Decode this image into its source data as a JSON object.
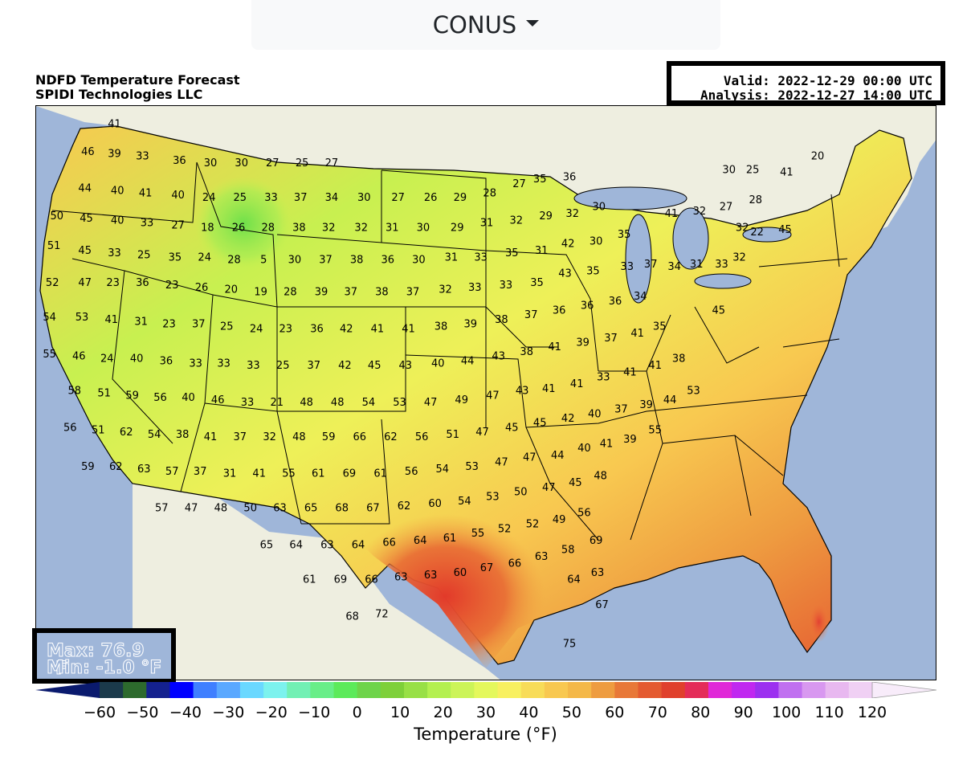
{
  "region_selector": {
    "label": "CONUS",
    "icon": "caret-down-icon"
  },
  "header": {
    "title_line1": "NDFD Temperature Forecast",
    "title_line2": "SPIDI Technologies LLC",
    "valid": "Valid: 2022-12-29 00:00 UTC",
    "analysis": "Analysis: 2022-12-27 14:00 UTC"
  },
  "stats": {
    "max": "Max: 76.9 °F",
    "min": "Min: -1.0 °F"
  },
  "colorbar": {
    "label": "Temperature (°F)",
    "ticks": [
      "−60",
      "−50",
      "−40",
      "−30",
      "−20",
      "−10",
      "0",
      "10",
      "20",
      "30",
      "40",
      "50",
      "60",
      "70",
      "80",
      "90",
      "100",
      "110",
      "120"
    ],
    "colors": [
      "#0a1a6e",
      "#1b3a4b",
      "#2d6a2d",
      "#14218f",
      "#0000ff",
      "#3f7fff",
      "#5aa8ff",
      "#6ad8ff",
      "#7cf2ee",
      "#72f0b4",
      "#68ee88",
      "#5cea5a",
      "#6ed44a",
      "#7ed03a",
      "#98e046",
      "#b4f050",
      "#ccf458",
      "#e4f85c",
      "#f8f060",
      "#f8dc58",
      "#f8c850",
      "#f4b848",
      "#ee9c40",
      "#e87838",
      "#e45a30",
      "#e0402c",
      "#e42c58",
      "#e028d8",
      "#c028f0",
      "#9c30f0",
      "#c070f0",
      "#d898f0",
      "#e8b8f0",
      "#f0d0f4",
      "#f8ecfa"
    ],
    "range": [
      -60,
      120
    ],
    "step": 5
  },
  "map_colors": {
    "ocean": "#9fb6d9",
    "land_foreign": "#eeeee0",
    "lakes": "#9fb6d9",
    "boundary": "#000000"
  },
  "map_labels": [
    {
      "t": "41",
      "lon": -122.2,
      "lat": 48.7
    },
    {
      "t": "46",
      "lon": -124.0,
      "lat": 47.5
    },
    {
      "t": "39",
      "lon": -122.2,
      "lat": 47.4
    },
    {
      "t": "33",
      "lon": -120.3,
      "lat": 47.3
    },
    {
      "t": "36",
      "lon": -117.8,
      "lat": 47.1
    },
    {
      "t": "30",
      "lon": -115.7,
      "lat": 47.0
    },
    {
      "t": "30",
      "lon": -113.6,
      "lat": 47.0
    },
    {
      "t": "27",
      "lon": -111.5,
      "lat": 47.0
    },
    {
      "t": "25",
      "lon": -109.5,
      "lat": 47.0
    },
    {
      "t": "27",
      "lon": -107.5,
      "lat": 47.0
    },
    {
      "t": "44",
      "lon": -124.2,
      "lat": 45.9
    },
    {
      "t": "40",
      "lon": -122.0,
      "lat": 45.8
    },
    {
      "t": "41",
      "lon": -120.1,
      "lat": 45.7
    },
    {
      "t": "40",
      "lon": -117.9,
      "lat": 45.6
    },
    {
      "t": "24",
      "lon": -115.8,
      "lat": 45.5
    },
    {
      "t": "25",
      "lon": -113.7,
      "lat": 45.5
    },
    {
      "t": "33",
      "lon": -111.6,
      "lat": 45.5
    },
    {
      "t": "37",
      "lon": -109.6,
      "lat": 45.5
    },
    {
      "t": "34",
      "lon": -107.5,
      "lat": 45.5
    },
    {
      "t": "30",
      "lon": -105.3,
      "lat": 45.5
    },
    {
      "t": "27",
      "lon": -103.0,
      "lat": 45.5
    },
    {
      "t": "26",
      "lon": -100.8,
      "lat": 45.5
    },
    {
      "t": "29",
      "lon": -98.8,
      "lat": 45.5
    },
    {
      "t": "28",
      "lon": -96.8,
      "lat": 45.7
    },
    {
      "t": "27",
      "lon": -94.8,
      "lat": 46.1
    },
    {
      "t": "35",
      "lon": -93.4,
      "lat": 46.3
    },
    {
      "t": "36",
      "lon": -91.4,
      "lat": 46.4
    },
    {
      "t": "50",
      "lon": -126.1,
      "lat": 44.7
    },
    {
      "t": "45",
      "lon": -124.1,
      "lat": 44.6
    },
    {
      "t": "40",
      "lon": -122.0,
      "lat": 44.5
    },
    {
      "t": "33",
      "lon": -120.0,
      "lat": 44.4
    },
    {
      "t": "27",
      "lon": -117.9,
      "lat": 44.3
    },
    {
      "t": "18",
      "lon": -115.9,
      "lat": 44.2
    },
    {
      "t": "26",
      "lon": -113.8,
      "lat": 44.2
    },
    {
      "t": "28",
      "lon": -111.8,
      "lat": 44.2
    },
    {
      "t": "38",
      "lon": -109.7,
      "lat": 44.2
    },
    {
      "t": "32",
      "lon": -107.7,
      "lat": 44.2
    },
    {
      "t": "32",
      "lon": -105.5,
      "lat": 44.2
    },
    {
      "t": "31",
      "lon": -103.4,
      "lat": 44.2
    },
    {
      "t": "30",
      "lon": -101.3,
      "lat": 44.2
    },
    {
      "t": "29",
      "lon": -99.0,
      "lat": 44.2
    },
    {
      "t": "31",
      "lon": -97.0,
      "lat": 44.4
    },
    {
      "t": "32",
      "lon": -95.0,
      "lat": 44.5
    },
    {
      "t": "29",
      "lon": -93.0,
      "lat": 44.7
    },
    {
      "t": "32",
      "lon": -91.2,
      "lat": 44.8
    },
    {
      "t": "30",
      "lon": -89.4,
      "lat": 45.1
    },
    {
      "t": "51",
      "lon": -126.3,
      "lat": 43.4
    },
    {
      "t": "45",
      "lon": -124.2,
      "lat": 43.2
    },
    {
      "t": "33",
      "lon": -122.2,
      "lat": 43.1
    },
    {
      "t": "25",
      "lon": -120.2,
      "lat": 43.0
    },
    {
      "t": "35",
      "lon": -118.1,
      "lat": 42.9
    },
    {
      "t": "24",
      "lon": -116.1,
      "lat": 42.9
    },
    {
      "t": "28",
      "lon": -114.1,
      "lat": 42.8
    },
    {
      "t": "5",
      "lon": -112.1,
      "lat": 42.8
    },
    {
      "t": "30",
      "lon": -110.0,
      "lat": 42.8
    },
    {
      "t": "37",
      "lon": -107.9,
      "lat": 42.8
    },
    {
      "t": "38",
      "lon": -105.8,
      "lat": 42.8
    },
    {
      "t": "36",
      "lon": -103.7,
      "lat": 42.8
    },
    {
      "t": "30",
      "lon": -101.6,
      "lat": 42.8
    },
    {
      "t": "31",
      "lon": -99.4,
      "lat": 42.9
    },
    {
      "t": "33",
      "lon": -97.4,
      "lat": 42.9
    },
    {
      "t": "35",
      "lon": -95.3,
      "lat": 43.1
    },
    {
      "t": "31",
      "lon": -93.3,
      "lat": 43.2
    },
    {
      "t": "42",
      "lon": -91.5,
      "lat": 43.5
    },
    {
      "t": "30",
      "lon": -89.6,
      "lat": 43.6
    },
    {
      "t": "35",
      "lon": -87.7,
      "lat": 43.9
    },
    {
      "t": "41",
      "lon": -84.5,
      "lat": 44.8
    },
    {
      "t": "32",
      "lon": -82.6,
      "lat": 44.9
    },
    {
      "t": "27",
      "lon": -80.8,
      "lat": 45.1
    },
    {
      "t": "28",
      "lon": -78.8,
      "lat": 45.4
    },
    {
      "t": "20",
      "lon": -74.6,
      "lat": 47.3
    },
    {
      "t": "30",
      "lon": -80.6,
      "lat": 46.7
    },
    {
      "t": "25",
      "lon": -79.0,
      "lat": 46.7
    },
    {
      "t": "41",
      "lon": -76.7,
      "lat": 46.6
    },
    {
      "t": "32",
      "lon": -79.7,
      "lat": 44.2
    },
    {
      "t": "22",
      "lon": -78.7,
      "lat": 44.0
    },
    {
      "t": "45",
      "lon": -76.8,
      "lat": 44.1
    },
    {
      "t": "52",
      "lon": -126.4,
      "lat": 41.8
    },
    {
      "t": "47",
      "lon": -124.2,
      "lat": 41.8
    },
    {
      "t": "23",
      "lon": -122.3,
      "lat": 41.8
    },
    {
      "t": "36",
      "lon": -120.3,
      "lat": 41.8
    },
    {
      "t": "23",
      "lon": -118.3,
      "lat": 41.7
    },
    {
      "t": "26",
      "lon": -116.3,
      "lat": 41.6
    },
    {
      "t": "20",
      "lon": -114.3,
      "lat": 41.5
    },
    {
      "t": "19",
      "lon": -112.3,
      "lat": 41.4
    },
    {
      "t": "28",
      "lon": -110.3,
      "lat": 41.4
    },
    {
      "t": "39",
      "lon": -108.2,
      "lat": 41.4
    },
    {
      "t": "37",
      "lon": -106.2,
      "lat": 41.4
    },
    {
      "t": "38",
      "lon": -104.1,
      "lat": 41.4
    },
    {
      "t": "37",
      "lon": -102.0,
      "lat": 41.4
    },
    {
      "t": "32",
      "lon": -99.8,
      "lat": 41.5
    },
    {
      "t": "33",
      "lon": -97.8,
      "lat": 41.6
    },
    {
      "t": "33",
      "lon": -95.7,
      "lat": 41.7
    },
    {
      "t": "35",
      "lon": -93.6,
      "lat": 41.8
    },
    {
      "t": "43",
      "lon": -91.7,
      "lat": 42.2
    },
    {
      "t": "35",
      "lon": -89.8,
      "lat": 42.3
    },
    {
      "t": "33",
      "lon": -87.5,
      "lat": 42.5
    },
    {
      "t": "37",
      "lon": -85.9,
      "lat": 42.6
    },
    {
      "t": "34",
      "lon": -84.3,
      "lat": 42.5
    },
    {
      "t": "31",
      "lon": -82.8,
      "lat": 42.6
    },
    {
      "t": "33",
      "lon": -81.1,
      "lat": 42.6
    },
    {
      "t": "32",
      "lon": -79.9,
      "lat": 42.9
    },
    {
      "t": "54",
      "lon": -126.6,
      "lat": 40.3
    },
    {
      "t": "53",
      "lon": -124.4,
      "lat": 40.3
    },
    {
      "t": "41",
      "lon": -122.4,
      "lat": 40.2
    },
    {
      "t": "31",
      "lon": -120.4,
      "lat": 40.1
    },
    {
      "t": "23",
      "lon": -118.5,
      "lat": 40.0
    },
    {
      "t": "37",
      "lon": -116.5,
      "lat": 40.0
    },
    {
      "t": "25",
      "lon": -114.6,
      "lat": 39.9
    },
    {
      "t": "24",
      "lon": -112.6,
      "lat": 39.8
    },
    {
      "t": "23",
      "lon": -110.6,
      "lat": 39.8
    },
    {
      "t": "36",
      "lon": -108.5,
      "lat": 39.8
    },
    {
      "t": "42",
      "lon": -106.5,
      "lat": 39.8
    },
    {
      "t": "41",
      "lon": -104.4,
      "lat": 39.8
    },
    {
      "t": "41",
      "lon": -102.3,
      "lat": 39.8
    },
    {
      "t": "38",
      "lon": -100.1,
      "lat": 39.9
    },
    {
      "t": "39",
      "lon": -98.1,
      "lat": 40.0
    },
    {
      "t": "38",
      "lon": -96.0,
      "lat": 40.2
    },
    {
      "t": "37",
      "lon": -94.0,
      "lat": 40.4
    },
    {
      "t": "36",
      "lon": -92.1,
      "lat": 40.6
    },
    {
      "t": "36",
      "lon": -90.2,
      "lat": 40.8
    },
    {
      "t": "36",
      "lon": -88.3,
      "lat": 41.0
    },
    {
      "t": "34",
      "lon": -86.6,
      "lat": 41.2
    },
    {
      "t": "45",
      "lon": -81.3,
      "lat": 40.6
    },
    {
      "t": "55",
      "lon": -126.6,
      "lat": 38.7
    },
    {
      "t": "46",
      "lon": -124.6,
      "lat": 38.6
    },
    {
      "t": "24",
      "lon": -122.7,
      "lat": 38.5
    },
    {
      "t": "40",
      "lon": -120.7,
      "lat": 38.5
    },
    {
      "t": "36",
      "lon": -118.7,
      "lat": 38.4
    },
    {
      "t": "33",
      "lon": -116.7,
      "lat": 38.3
    },
    {
      "t": "33",
      "lon": -114.8,
      "lat": 38.3
    },
    {
      "t": "33",
      "lon": -112.8,
      "lat": 38.2
    },
    {
      "t": "25",
      "lon": -110.8,
      "lat": 38.2
    },
    {
      "t": "37",
      "lon": -108.7,
      "lat": 38.2
    },
    {
      "t": "42",
      "lon": -106.6,
      "lat": 38.2
    },
    {
      "t": "45",
      "lon": -104.6,
      "lat": 38.2
    },
    {
      "t": "43",
      "lon": -102.5,
      "lat": 38.2
    },
    {
      "t": "40",
      "lon": -100.3,
      "lat": 38.3
    },
    {
      "t": "44",
      "lon": -98.3,
      "lat": 38.4
    },
    {
      "t": "43",
      "lon": -96.2,
      "lat": 38.6
    },
    {
      "t": "38",
      "lon": -94.3,
      "lat": 38.8
    },
    {
      "t": "41",
      "lon": -92.4,
      "lat": 39.0
    },
    {
      "t": "39",
      "lon": -90.5,
      "lat": 39.2
    },
    {
      "t": "37",
      "lon": -88.6,
      "lat": 39.4
    },
    {
      "t": "41",
      "lon": -86.8,
      "lat": 39.6
    },
    {
      "t": "35",
      "lon": -85.3,
      "lat": 39.9
    },
    {
      "t": "58",
      "lon": -124.9,
      "lat": 37.1
    },
    {
      "t": "51",
      "lon": -122.9,
      "lat": 37.0
    },
    {
      "t": "59",
      "lon": -121.0,
      "lat": 36.9
    },
    {
      "t": "56",
      "lon": -119.1,
      "lat": 36.8
    },
    {
      "t": "40",
      "lon": -117.2,
      "lat": 36.8
    },
    {
      "t": "46",
      "lon": -115.2,
      "lat": 36.7
    },
    {
      "t": "33",
      "lon": -113.2,
      "lat": 36.6
    },
    {
      "t": "21",
      "lon": -111.2,
      "lat": 36.6
    },
    {
      "t": "48",
      "lon": -109.2,
      "lat": 36.6
    },
    {
      "t": "48",
      "lon": -107.1,
      "lat": 36.6
    },
    {
      "t": "54",
      "lon": -105.0,
      "lat": 36.6
    },
    {
      "t": "53",
      "lon": -102.9,
      "lat": 36.6
    },
    {
      "t": "47",
      "lon": -100.8,
      "lat": 36.6
    },
    {
      "t": "49",
      "lon": -98.7,
      "lat": 36.7
    },
    {
      "t": "47",
      "lon": -96.6,
      "lat": 36.9
    },
    {
      "t": "43",
      "lon": -94.6,
      "lat": 37.1
    },
    {
      "t": "41",
      "lon": -92.8,
      "lat": 37.2
    },
    {
      "t": "41",
      "lon": -90.9,
      "lat": 37.4
    },
    {
      "t": "33",
      "lon": -89.1,
      "lat": 37.7
    },
    {
      "t": "41",
      "lon": -87.3,
      "lat": 37.9
    },
    {
      "t": "41",
      "lon": -85.6,
      "lat": 38.2
    },
    {
      "t": "38",
      "lon": -84.0,
      "lat": 38.5
    },
    {
      "t": "56",
      "lon": -125.2,
      "lat": 35.5
    },
    {
      "t": "51",
      "lon": -123.3,
      "lat": 35.4
    },
    {
      "t": "62",
      "lon": -121.4,
      "lat": 35.3
    },
    {
      "t": "54",
      "lon": -119.5,
      "lat": 35.2
    },
    {
      "t": "38",
      "lon": -117.6,
      "lat": 35.2
    },
    {
      "t": "41",
      "lon": -115.7,
      "lat": 35.1
    },
    {
      "t": "37",
      "lon": -113.7,
      "lat": 35.1
    },
    {
      "t": "32",
      "lon": -111.7,
      "lat": 35.1
    },
    {
      "t": "48",
      "lon": -109.7,
      "lat": 35.1
    },
    {
      "t": "59",
      "lon": -107.7,
      "lat": 35.1
    },
    {
      "t": "66",
      "lon": -105.6,
      "lat": 35.1
    },
    {
      "t": "62",
      "lon": -103.5,
      "lat": 35.1
    },
    {
      "t": "56",
      "lon": -101.4,
      "lat": 35.1
    },
    {
      "t": "51",
      "lon": -99.3,
      "lat": 35.2
    },
    {
      "t": "47",
      "lon": -97.3,
      "lat": 35.3
    },
    {
      "t": "45",
      "lon": -95.3,
      "lat": 35.5
    },
    {
      "t": "45",
      "lon": -93.4,
      "lat": 35.7
    },
    {
      "t": "42",
      "lon": -91.5,
      "lat": 35.9
    },
    {
      "t": "40",
      "lon": -89.7,
      "lat": 36.1
    },
    {
      "t": "37",
      "lon": -87.9,
      "lat": 36.3
    },
    {
      "t": "39",
      "lon": -86.2,
      "lat": 36.5
    },
    {
      "t": "44",
      "lon": -84.6,
      "lat": 36.7
    },
    {
      "t": "53",
      "lon": -83.0,
      "lat": 37.1
    },
    {
      "t": "59",
      "lon": -124.0,
      "lat": 33.8
    },
    {
      "t": "62",
      "lon": -122.1,
      "lat": 33.8
    },
    {
      "t": "63",
      "lon": -120.2,
      "lat": 33.7
    },
    {
      "t": "57",
      "lon": -118.3,
      "lat": 33.6
    },
    {
      "t": "37",
      "lon": -116.4,
      "lat": 33.6
    },
    {
      "t": "31",
      "lon": -114.4,
      "lat": 33.5
    },
    {
      "t": "41",
      "lon": -112.4,
      "lat": 33.5
    },
    {
      "t": "55",
      "lon": -110.4,
      "lat": 33.5
    },
    {
      "t": "61",
      "lon": -108.4,
      "lat": 33.5
    },
    {
      "t": "69",
      "lon": -106.3,
      "lat": 33.5
    },
    {
      "t": "61",
      "lon": -104.2,
      "lat": 33.5
    },
    {
      "t": "56",
      "lon": -102.1,
      "lat": 33.6
    },
    {
      "t": "54",
      "lon": -100.0,
      "lat": 33.7
    },
    {
      "t": "53",
      "lon": -98.0,
      "lat": 33.8
    },
    {
      "t": "47",
      "lon": -96.0,
      "lat": 34.0
    },
    {
      "t": "47",
      "lon": -94.1,
      "lat": 34.2
    },
    {
      "t": "44",
      "lon": -92.2,
      "lat": 34.3
    },
    {
      "t": "40",
      "lon": -90.4,
      "lat": 34.6
    },
    {
      "t": "41",
      "lon": -88.9,
      "lat": 34.8
    },
    {
      "t": "39",
      "lon": -87.3,
      "lat": 35.0
    },
    {
      "t": "55",
      "lon": -85.6,
      "lat": 35.4
    },
    {
      "t": "57",
      "lon": -119.0,
      "lat": 32.0
    },
    {
      "t": "47",
      "lon": -117.0,
      "lat": 32.0
    },
    {
      "t": "48",
      "lon": -115.0,
      "lat": 32.0
    },
    {
      "t": "50",
      "lon": -113.0,
      "lat": 32.0
    },
    {
      "t": "63",
      "lon": -111.0,
      "lat": 32.0
    },
    {
      "t": "65",
      "lon": -108.9,
      "lat": 32.0
    },
    {
      "t": "68",
      "lon": -106.8,
      "lat": 32.0
    },
    {
      "t": "67",
      "lon": -104.7,
      "lat": 32.0
    },
    {
      "t": "62",
      "lon": -102.6,
      "lat": 32.1
    },
    {
      "t": "60",
      "lon": -100.5,
      "lat": 32.2
    },
    {
      "t": "54",
      "lon": -98.5,
      "lat": 32.3
    },
    {
      "t": "53",
      "lon": -96.6,
      "lat": 32.5
    },
    {
      "t": "50",
      "lon": -94.7,
      "lat": 32.7
    },
    {
      "t": "47",
      "lon": -92.8,
      "lat": 32.9
    },
    {
      "t": "45",
      "lon": -91.0,
      "lat": 33.1
    },
    {
      "t": "48",
      "lon": -89.3,
      "lat": 33.4
    },
    {
      "t": "65",
      "lon": -111.9,
      "lat": 30.4
    },
    {
      "t": "64",
      "lon": -109.9,
      "lat": 30.4
    },
    {
      "t": "63",
      "lon": -107.8,
      "lat": 30.4
    },
    {
      "t": "64",
      "lon": -105.7,
      "lat": 30.4
    },
    {
      "t": "66",
      "lon": -103.6,
      "lat": 30.5
    },
    {
      "t": "64",
      "lon": -101.5,
      "lat": 30.6
    },
    {
      "t": "61",
      "lon": -99.5,
      "lat": 30.7
    },
    {
      "t": "55",
      "lon": -97.6,
      "lat": 30.9
    },
    {
      "t": "52",
      "lon": -95.8,
      "lat": 31.1
    },
    {
      "t": "52",
      "lon": -93.9,
      "lat": 31.3
    },
    {
      "t": "49",
      "lon": -92.1,
      "lat": 31.5
    },
    {
      "t": "56",
      "lon": -90.4,
      "lat": 31.8
    },
    {
      "t": "61",
      "lon": -109.0,
      "lat": 28.9
    },
    {
      "t": "69",
      "lon": -106.9,
      "lat": 28.9
    },
    {
      "t": "66",
      "lon": -104.8,
      "lat": 28.9
    },
    {
      "t": "63",
      "lon": -102.8,
      "lat": 29.0
    },
    {
      "t": "63",
      "lon": -100.8,
      "lat": 29.1
    },
    {
      "t": "60",
      "lon": -98.8,
      "lat": 29.2
    },
    {
      "t": "67",
      "lon": -97.0,
      "lat": 29.4
    },
    {
      "t": "66",
      "lon": -95.1,
      "lat": 29.6
    },
    {
      "t": "63",
      "lon": -93.3,
      "lat": 29.9
    },
    {
      "t": "58",
      "lon": -91.5,
      "lat": 30.2
    },
    {
      "t": "69",
      "lon": -89.6,
      "lat": 30.6
    },
    {
      "t": "68",
      "lon": -106.1,
      "lat": 27.3
    },
    {
      "t": "72",
      "lon": -104.1,
      "lat": 27.4
    },
    {
      "t": "64",
      "lon": -91.1,
      "lat": 28.9
    },
    {
      "t": "63",
      "lon": -89.5,
      "lat": 29.2
    },
    {
      "t": "67",
      "lon": -89.2,
      "lat": 27.8
    },
    {
      "t": "75",
      "lon": -91.4,
      "lat": 26.1
    }
  ]
}
